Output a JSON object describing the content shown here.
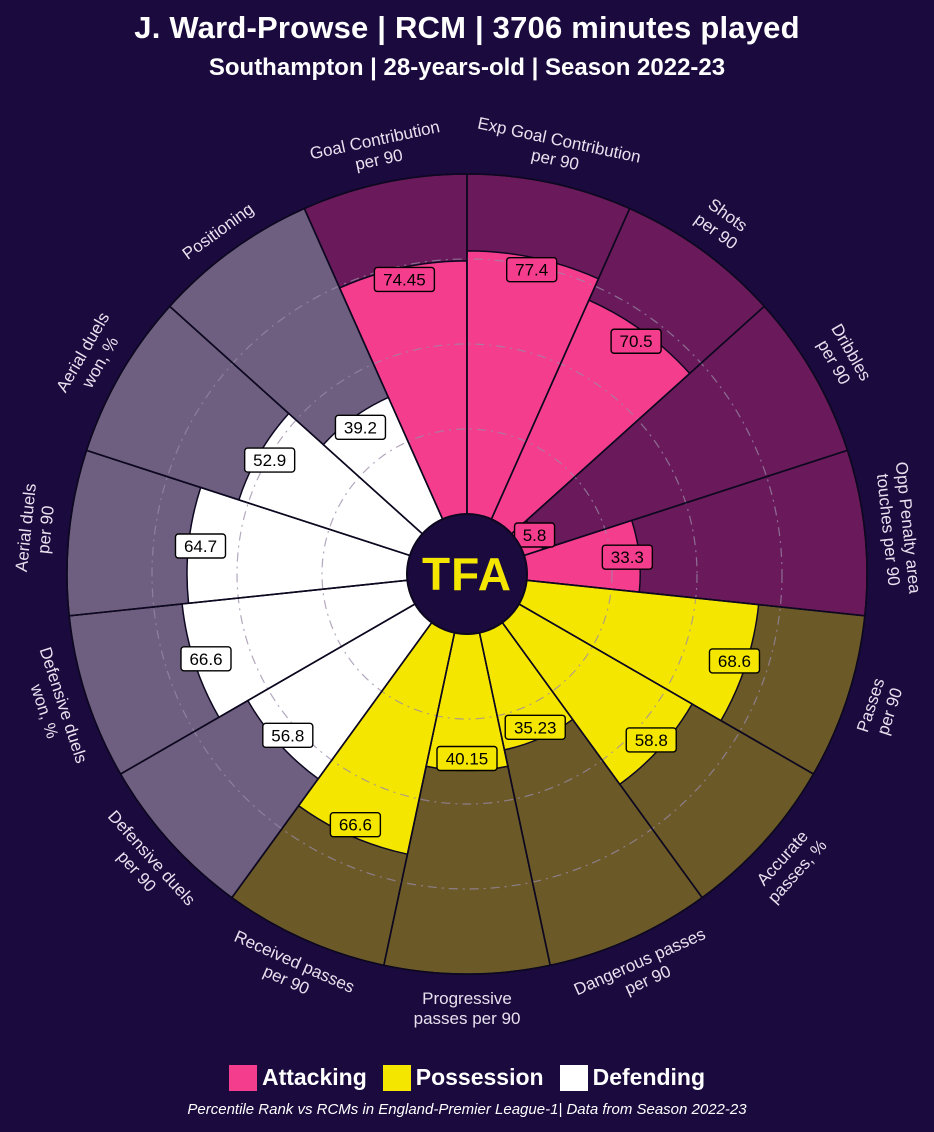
{
  "header": {
    "title": "J. Ward-Prowse | RCM | 3706 minutes played",
    "subtitle": "Southampton | 28-years-old | Season 2022-23"
  },
  "logo": {
    "text": "TFA"
  },
  "legend": [
    {
      "label": "Attacking",
      "color": "#f53d8e"
    },
    {
      "label": "Possession",
      "color": "#f5e600"
    },
    {
      "label": "Defending",
      "color": "#ffffff"
    }
  ],
  "footnote": "Percentile Rank vs RCMs in England-Premier League-1| Data from Season 2022-23",
  "colors": {
    "background": "#1a0a3e",
    "attacking_bg": "#6a1a5a",
    "possession_bg": "#6b5a28",
    "defending_bg": "#6e5f80",
    "label_text": "#e8e0ee",
    "ring": "#9a8aa8"
  },
  "chart_data": {
    "type": "pie",
    "subtype": "pizza",
    "rlim": [
      0,
      100
    ],
    "categories": [
      {
        "label": "Goal Contribution\nper 90",
        "value": 74.45,
        "display": "74.45",
        "group": "Attacking"
      },
      {
        "label": "Exp Goal Contribution\nper 90",
        "value": 77.4,
        "display": "77.4",
        "group": "Attacking"
      },
      {
        "label": "Shots\nper 90",
        "value": 70.5,
        "display": "70.5",
        "group": "Attacking"
      },
      {
        "label": "Dribbles\nper 90",
        "value": 5.8,
        "display": "5.8",
        "group": "Attacking"
      },
      {
        "label": "Opp Penalty area\ntouches per 90",
        "value": 33.3,
        "display": "33.3",
        "group": "Attacking"
      },
      {
        "label": "Passes\nper 90",
        "value": 68.6,
        "display": "68.6",
        "group": "Possession"
      },
      {
        "label": "Accurate\npasses, %",
        "value": 58.8,
        "display": "58.8",
        "group": "Possession"
      },
      {
        "label": "Dangerous passes\nper 90",
        "value": 35.23,
        "display": "35.23",
        "group": "Possession"
      },
      {
        "label": "Progressive\npasses per 90",
        "value": 40.15,
        "display": "40.15",
        "group": "Possession"
      },
      {
        "label": "Received passes\nper 90",
        "value": 66.6,
        "display": "66.6",
        "group": "Possession"
      },
      {
        "label": "Defensive duels\nper 90",
        "value": 56.8,
        "display": "56.8",
        "group": "Defending"
      },
      {
        "label": "Defensive duels\nwon, %",
        "value": 66.6,
        "display": "66.6",
        "group": "Defending"
      },
      {
        "label": "Aerial duels\nper 90",
        "value": 64.7,
        "display": "64.7",
        "group": "Defending"
      },
      {
        "label": "Aerial duels\nwon, %",
        "value": 52.9,
        "display": "52.9",
        "group": "Defending"
      },
      {
        "label": "Positioning",
        "value": 39.2,
        "display": "39.2",
        "group": "Defending"
      }
    ]
  }
}
